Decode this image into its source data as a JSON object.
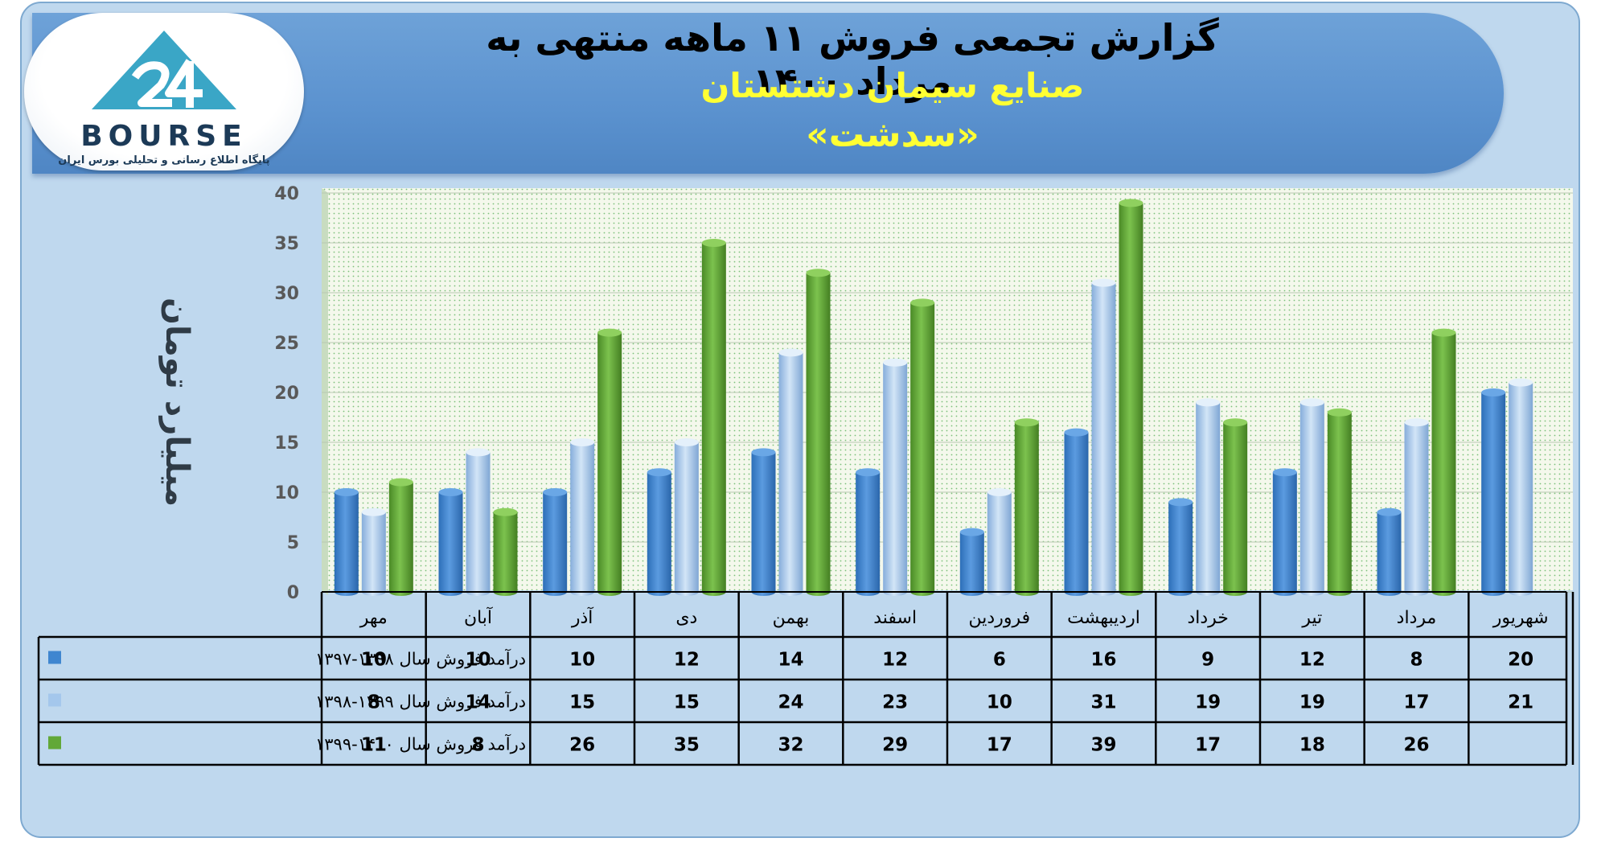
{
  "header": {
    "title": "گزارش تجمعی فروش ۱۱ ماهه منتهی به مرداد ۱۴۰۰",
    "company": "صنایع سیمان دشتستان",
    "symbol": "«سدشت»"
  },
  "logo": {
    "word": "BOURSE",
    "tagline": "پایگاه اطلاع رسانی و تحلیلی بورس ایران",
    "icon": "bourse-24-triangle-logo"
  },
  "colors": {
    "series_1": "#3f86d0",
    "series_2": "#a4c7ec",
    "series_3": "#62a838",
    "banner": "#5b92cf",
    "title_accent": "#ffff33"
  },
  "chart_data": {
    "type": "bar",
    "ylabel": "میلیارد تومان",
    "ylim": [
      0,
      40
    ],
    "yticks": [
      "0",
      "5",
      "10",
      "15",
      "20",
      "25",
      "30",
      "35",
      "40"
    ],
    "grid": true,
    "legend": "data-table-left",
    "categories": [
      "مهر",
      "آبان",
      "آذر",
      "دی",
      "بهمن",
      "اسفند",
      "فروردین",
      "اردیبهشت",
      "خرداد",
      "تیر",
      "مرداد",
      "شهریور"
    ],
    "series": [
      {
        "name": "درآمد فروش سال ۱۳۹۸-۱۳۹۷",
        "values": [
          10,
          10,
          10,
          12,
          14,
          12,
          6,
          16,
          9,
          12,
          8,
          20
        ]
      },
      {
        "name": "درآمد فروش سال ۱۳۹۹-۱۳۹۸",
        "values": [
          8,
          14,
          15,
          15,
          24,
          23,
          10,
          31,
          19,
          19,
          17,
          21
        ]
      },
      {
        "name": "درآمد فروش سال ۱۴۰۰-۱۳۹۹",
        "values": [
          11,
          8,
          26,
          35,
          32,
          29,
          17,
          39,
          17,
          18,
          26,
          null
        ]
      }
    ]
  }
}
